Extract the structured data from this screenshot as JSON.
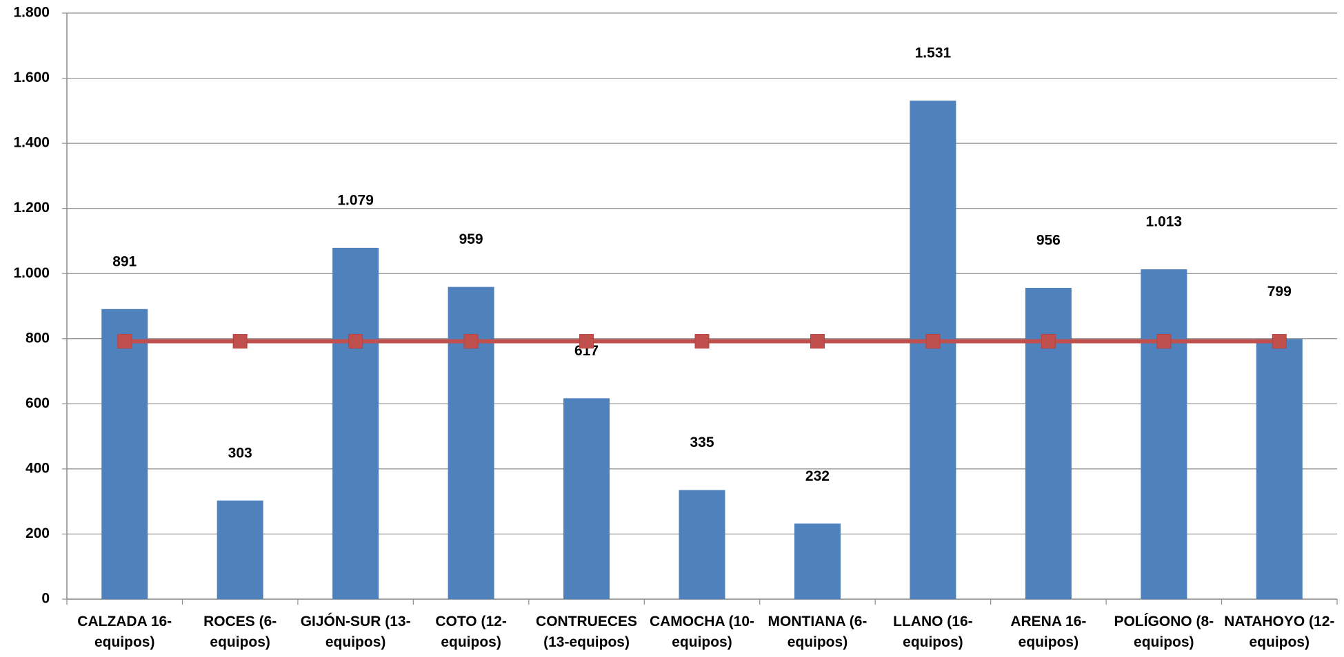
{
  "chart_data": {
    "type": "bar_line",
    "categories": [
      "CALZADA 16-equipos)",
      "ROCES (6-equipos)",
      "GIJÓN-SUR (13-equipos)",
      "COTO (12-equipos)",
      "CONTRUECES (13-equipos)",
      "CAMOCHA (10-equipos)",
      "MONTIANA (6-equipos)",
      "LLANO (16-equipos)",
      "ARENA 16-equipos)",
      "POLÍGONO (8-equipos)",
      "NATAHOYO (12-equipos)"
    ],
    "series": [
      {
        "type": "bar",
        "color": "#4f81bd",
        "values": [
          891,
          303,
          1079,
          959,
          617,
          335,
          232,
          1531,
          956,
          1013,
          799
        ],
        "value_labels": [
          "891",
          "303",
          "1.079",
          "959",
          "617",
          "335",
          "232",
          "1.531",
          "956",
          "1.013",
          "799"
        ]
      },
      {
        "type": "line",
        "color": "#c0504d",
        "values": [
          792,
          792,
          792,
          792,
          792,
          792,
          792,
          792,
          792,
          792,
          792
        ]
      }
    ],
    "ylim": [
      0,
      1800
    ],
    "yticks": [
      0,
      200,
      400,
      600,
      800,
      {
        "value": 1000,
        "label": "1.000"
      },
      {
        "value": 1200,
        "label": "1.200"
      },
      {
        "value": 1400,
        "label": "1.400"
      },
      {
        "value": 1600,
        "label": "1.600"
      },
      {
        "value": 1800,
        "label": "1.800"
      }
    ],
    "grid": true
  }
}
